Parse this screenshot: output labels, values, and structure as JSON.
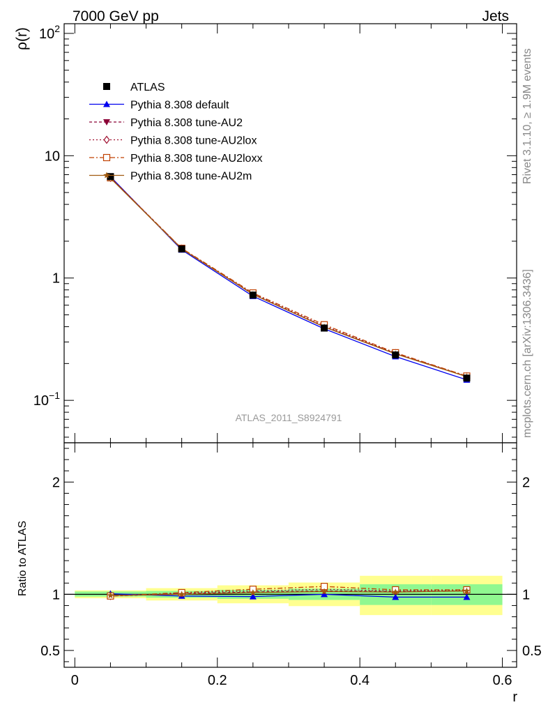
{
  "header": {
    "left": "7000 GeV pp",
    "right": "Jets"
  },
  "side_labels": {
    "rivet": "Rivet 3.1.10, ≥ 1.9M events",
    "mcplots": "mcplots.cern.ch [arXiv:1306.3436]"
  },
  "watermark": "ATLAS_2011_S8924791",
  "chart_data": [
    {
      "type": "line",
      "panel": "main",
      "ylabel": "ρ(r)",
      "yscale": "log",
      "ylim": [
        0.045,
        120
      ],
      "xlim": [
        -0.015,
        0.62
      ],
      "y_tick_labels": [
        {
          "value": 100,
          "mant": "10",
          "exp": "2"
        },
        {
          "value": 10,
          "mant": "10",
          "exp": ""
        },
        {
          "value": 1,
          "mant": "1",
          "exp": ""
        },
        {
          "value": 0.1,
          "mant": "10",
          "exp": "−1"
        }
      ],
      "x": [
        0.05,
        0.15,
        0.25,
        0.35,
        0.45,
        0.55
      ],
      "legend_position": "top-left",
      "series": [
        {
          "name": "ATLAS",
          "color": "#000000",
          "marker": "square-filled",
          "dash": "none",
          "values": [
            6.75,
            1.73,
            0.725,
            0.39,
            0.235,
            0.152
          ]
        },
        {
          "name": "Pythia 8.308 default",
          "color": "#0000ee",
          "marker": "triangle-up-filled",
          "dash": "solid",
          "values": [
            6.75,
            1.7,
            0.71,
            0.385,
            0.228,
            0.147
          ]
        },
        {
          "name": "Pythia 8.308 tune-AU2",
          "color": "#8b0035",
          "marker": "triangle-down-filled",
          "dash": "4,3",
          "values": [
            6.65,
            1.74,
            0.74,
            0.4,
            0.242,
            0.157
          ]
        },
        {
          "name": "Pythia 8.308 tune-AU2lox",
          "color": "#a01030",
          "marker": "diamond-open",
          "dash": "2,3",
          "values": [
            6.6,
            1.74,
            0.745,
            0.405,
            0.243,
            0.157
          ]
        },
        {
          "name": "Pythia 8.308 tune-AU2loxx",
          "color": "#c04000",
          "marker": "square-open",
          "dash": "7,3,2,3",
          "values": [
            6.6,
            1.75,
            0.755,
            0.415,
            0.245,
            0.158
          ]
        },
        {
          "name": "Pythia 8.308 tune-AU2m",
          "color": "#a05a10",
          "marker": "star",
          "dash": "solid",
          "values": [
            6.55,
            1.73,
            0.735,
            0.398,
            0.24,
            0.156
          ]
        }
      ]
    },
    {
      "type": "line",
      "panel": "ratio",
      "ylabel": "Ratio to ATLAS",
      "xlabel": "r",
      "ylim": [
        0.35,
        2.35
      ],
      "xlim": [
        -0.015,
        0.62
      ],
      "y_tick_labels": [
        {
          "value": 2,
          "text": "2"
        },
        {
          "value": 1,
          "text": "1"
        },
        {
          "value": 0.5,
          "text": "0.5"
        }
      ],
      "x_tick_labels": [
        {
          "value": 0,
          "text": "0"
        },
        {
          "value": 0.2,
          "text": "0.2"
        },
        {
          "value": 0.4,
          "text": "0.4"
        },
        {
          "value": 0.6,
          "text": "0.6"
        }
      ],
      "x": [
        0.05,
        0.15,
        0.25,
        0.35,
        0.45,
        0.55
      ],
      "bins": [
        [
          0.0,
          0.1
        ],
        [
          0.1,
          0.2
        ],
        [
          0.2,
          0.3
        ],
        [
          0.3,
          0.4
        ],
        [
          0.4,
          0.5
        ],
        [
          0.5,
          0.6
        ]
      ],
      "band_inner": [
        [
          0.98,
          1.025
        ],
        [
          0.97,
          1.03
        ],
        [
          0.96,
          1.04
        ],
        [
          0.95,
          1.05
        ],
        [
          0.905,
          1.09
        ],
        [
          0.905,
          1.09
        ]
      ],
      "band_outer": [
        [
          0.965,
          1.035
        ],
        [
          0.945,
          1.055
        ],
        [
          0.92,
          1.08
        ],
        [
          0.895,
          1.105
        ],
        [
          0.815,
          1.165
        ],
        [
          0.815,
          1.165
        ]
      ],
      "band_inner_color": "#90f890",
      "band_outer_color": "#ffff90",
      "series": [
        {
          "name": "ATLAS",
          "color": "#000000",
          "marker": "none",
          "dash": "none",
          "values": [
            1.0,
            1.0,
            1.0,
            1.0,
            1.0,
            1.0
          ]
        },
        {
          "name": "Pythia 8.308 default",
          "color": "#0000ee",
          "marker": "triangle-up-filled",
          "dash": "solid",
          "values": [
            1.005,
            0.985,
            0.98,
            1.0,
            0.975,
            0.975
          ]
        },
        {
          "name": "Pythia 8.308 tune-AU2",
          "color": "#8b0035",
          "marker": "triangle-down-filled",
          "dash": "4,3",
          "values": [
            0.985,
            1.005,
            1.02,
            1.03,
            1.025,
            1.03
          ]
        },
        {
          "name": "Pythia 8.308 tune-AU2lox",
          "color": "#a01030",
          "marker": "diamond-open",
          "dash": "2,3",
          "values": [
            0.985,
            1.01,
            1.03,
            1.045,
            1.03,
            1.035
          ]
        },
        {
          "name": "Pythia 8.308 tune-AU2loxx",
          "color": "#c04000",
          "marker": "square-open",
          "dash": "7,3,2,3",
          "values": [
            0.985,
            1.015,
            1.045,
            1.07,
            1.04,
            1.04
          ]
        },
        {
          "name": "Pythia 8.308 tune-AU2m",
          "color": "#a05a10",
          "marker": "star",
          "dash": "solid",
          "values": [
            0.99,
            1.0,
            1.015,
            1.025,
            1.02,
            1.03
          ]
        }
      ]
    }
  ]
}
